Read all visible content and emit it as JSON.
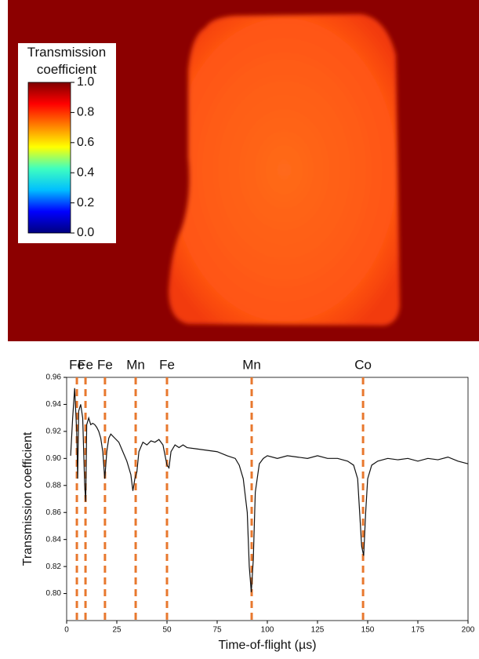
{
  "chart_data": [
    {
      "type": "colorbar",
      "title": "Transmission coefficient",
      "clim": [
        0,
        1
      ],
      "ticks": [
        {
          "value": 0,
          "label": "0.0"
        },
        0.2,
        0.4,
        0.6,
        0.8,
        {
          "value": 1,
          "label": "1.0"
        }
      ],
      "colormap": [
        "#00007f",
        "#0000ff",
        "#00bfff",
        "#3fffbf",
        "#ffff00",
        "#ff7f00",
        "#ff0000",
        "#7f0000"
      ]
    },
    {
      "type": "line",
      "ylabel": "Transmission coefficient",
      "xlabel": "Time-of-flight (µs)",
      "color": "#111111",
      "xlim": [
        0,
        200
      ],
      "ylim": [
        0.78,
        0.96
      ],
      "xticks": [
        0,
        25,
        50,
        75,
        100,
        125,
        150,
        175,
        200
      ],
      "yticks": [
        {
          "value": 0.8,
          "label": "0.80"
        },
        0.82,
        0.84,
        0.86,
        0.88,
        {
          "value": 0.9,
          "label": "0.90"
        },
        0.92,
        0.94,
        0.96
      ],
      "x": [
        2,
        3,
        4,
        5,
        5.5,
        6,
        7,
        8,
        9,
        9.5,
        10,
        11,
        12,
        13,
        14,
        15,
        16,
        17,
        18,
        19,
        20,
        21,
        22,
        24,
        26,
        28,
        30,
        32,
        33,
        34,
        35,
        36,
        38,
        40,
        42,
        44,
        46,
        48,
        50,
        51,
        52,
        54,
        56,
        58,
        60,
        65,
        70,
        75,
        80,
        84,
        86,
        88,
        90,
        91,
        92,
        93,
        94,
        96,
        98,
        100,
        105,
        110,
        115,
        120,
        125,
        130,
        135,
        140,
        143,
        145,
        146,
        147,
        148,
        149,
        150,
        152,
        155,
        160,
        165,
        170,
        175,
        180,
        185,
        190,
        195,
        200
      ],
      "values": [
        0.902,
        0.93,
        0.952,
        0.92,
        0.885,
        0.935,
        0.94,
        0.93,
        0.88,
        0.868,
        0.925,
        0.93,
        0.925,
        0.926,
        0.925,
        0.923,
        0.92,
        0.915,
        0.905,
        0.885,
        0.905,
        0.915,
        0.918,
        0.915,
        0.912,
        0.905,
        0.898,
        0.888,
        0.876,
        0.885,
        0.89,
        0.905,
        0.912,
        0.91,
        0.913,
        0.912,
        0.914,
        0.91,
        0.895,
        0.893,
        0.905,
        0.91,
        0.908,
        0.91,
        0.908,
        0.907,
        0.906,
        0.905,
        0.902,
        0.9,
        0.895,
        0.885,
        0.86,
        0.82,
        0.801,
        0.825,
        0.875,
        0.896,
        0.9,
        0.902,
        0.9,
        0.902,
        0.901,
        0.9,
        0.902,
        0.9,
        0.9,
        0.898,
        0.895,
        0.885,
        0.86,
        0.835,
        0.828,
        0.86,
        0.885,
        0.895,
        0.898,
        0.9,
        0.899,
        0.9,
        0.898,
        0.9,
        0.899,
        0.901,
        0.898,
        0.896
      ],
      "annotation_color": "#e8782e",
      "annotations": [
        {
          "x": 5.1,
          "label": "Fe"
        },
        {
          "x": 9.4,
          "label": "Fe"
        },
        {
          "x": 19.1,
          "label": "Fe"
        },
        {
          "x": 34.4,
          "label": "Mn"
        },
        {
          "x": 50,
          "label": "Fe"
        },
        {
          "x": 92.2,
          "label": "Mn"
        },
        {
          "x": 147.7,
          "label": "Co"
        }
      ]
    }
  ]
}
